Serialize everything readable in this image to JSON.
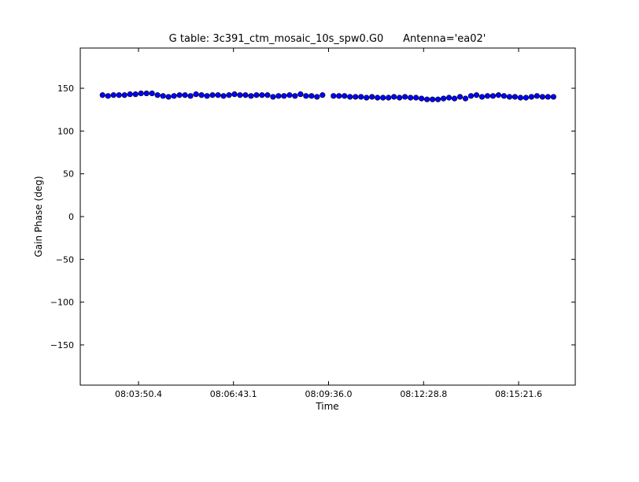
{
  "chart_data": {
    "type": "scatter",
    "title": "G table: 3c391_ctm_mosaic_10s_spw0.G0      Antenna='ea02'",
    "xlabel": "Time",
    "ylabel": "Gain Phase (deg)",
    "series": [
      {
        "color": "#0000ff",
        "x": [
          28965,
          28975,
          28985,
          28995,
          29005,
          29015,
          29025,
          29035,
          29045,
          29055,
          29065,
          29075,
          29085,
          29095,
          29105,
          29115,
          29125,
          29135,
          29145,
          29155,
          29165,
          29175,
          29185,
          29195,
          29205,
          29215,
          29225,
          29235,
          29245,
          29255,
          29265,
          29275,
          29285,
          29295,
          29305,
          29315,
          29325,
          29335,
          29345,
          29355,
          29365,
          29385,
          29395,
          29405,
          29415,
          29425,
          29435,
          29445,
          29455,
          29465,
          29475,
          29485,
          29495,
          29505,
          29515,
          29525,
          29535,
          29545,
          29555,
          29565,
          29575,
          29585,
          29595,
          29605,
          29615,
          29625,
          29635,
          29645,
          29655,
          29665,
          29675,
          29685,
          29695,
          29705,
          29715,
          29725,
          29735,
          29745,
          29755,
          29765,
          29775,
          29785
        ],
        "values": [
          142,
          141,
          142,
          142,
          142,
          143,
          143,
          144,
          144,
          144,
          142,
          141,
          140,
          141,
          142,
          142,
          141,
          143,
          142,
          141,
          142,
          142,
          141,
          142,
          143,
          142,
          142,
          141,
          142,
          142,
          142,
          140,
          141,
          141,
          142,
          141,
          143,
          141,
          141,
          140,
          142,
          141,
          141,
          141,
          140,
          140,
          140,
          139,
          140,
          139,
          139,
          139,
          140,
          139,
          140,
          139,
          139,
          138,
          137,
          137,
          137,
          138,
          139,
          138,
          140,
          138,
          141,
          142,
          140,
          141,
          141,
          142,
          141,
          140,
          140,
          139,
          139,
          140,
          141,
          140,
          140,
          140
        ]
      }
    ],
    "xlim": [
      28924.5,
      29824.6
    ],
    "xticks": [
      {
        "value": 29030.4,
        "label": "08:03:50.4"
      },
      {
        "value": 29203.1,
        "label": "08:06:43.1"
      },
      {
        "value": 29376.0,
        "label": "08:09:36.0"
      },
      {
        "value": 29548.8,
        "label": "08:12:28.8"
      },
      {
        "value": 29721.6,
        "label": "08:15:21.6"
      }
    ],
    "ylim": [
      -197,
      197
    ],
    "yticks": [
      {
        "value": -150,
        "label": "−150"
      },
      {
        "value": -100,
        "label": "−100"
      },
      {
        "value": -50,
        "label": "−50"
      },
      0,
      50,
      100,
      150
    ]
  }
}
